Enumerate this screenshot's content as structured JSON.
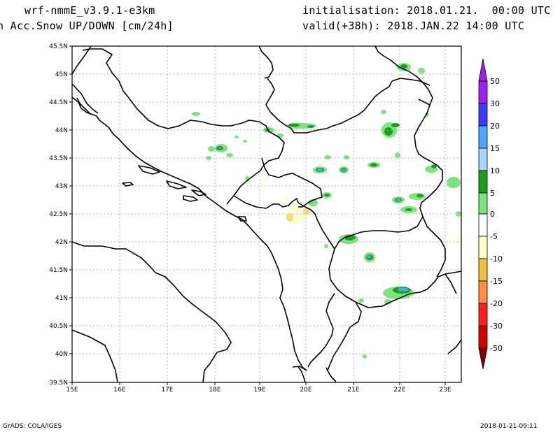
{
  "header": {
    "model": "wrf-nmmE_v3.9.1-e3km",
    "field": "n Acc.Snow UP/DOWN [cm/24h]",
    "init": "initialisation: 2018.01.21.  00:00 UTC",
    "valid": "valid(+38h): 2018.JAN.22 14:00 UTC"
  },
  "axes": {
    "lat_labels": [
      "45.5N",
      "45N",
      "44.5N",
      "44N",
      "43.5N",
      "43N",
      "42.5N",
      "42N",
      "41.5N",
      "41N",
      "40.5N",
      "40N",
      "39.5N"
    ],
    "lon_labels": [
      "15E",
      "16E",
      "17E",
      "18E",
      "19E",
      "20E",
      "21E",
      "22E",
      "23E"
    ],
    "lat_range": [
      39.5,
      45.5
    ],
    "lon_range": [
      15.0,
      23.2
    ]
  },
  "colorbar": {
    "labels": [
      "50",
      "30",
      "20",
      "15",
      "10",
      "5",
      "0",
      "-5",
      "-10",
      "-15",
      "-20",
      "-30",
      "-50"
    ],
    "colors": [
      "#a020f0",
      "#3c3cff",
      "#4ea6ff",
      "#a6d6ff",
      "#18a018",
      "#78e678",
      "#ffffff",
      "#ffffd0",
      "#f0c040",
      "#ff9040",
      "#ff2020",
      "#d00000",
      "#900000"
    ],
    "top_arrow_color": "#a020f0",
    "bottom_arrow_color": "#800000"
  },
  "footer": {
    "left": "GrADS: COLA/IGES",
    "right": "2018-01-21-09:11"
  }
}
